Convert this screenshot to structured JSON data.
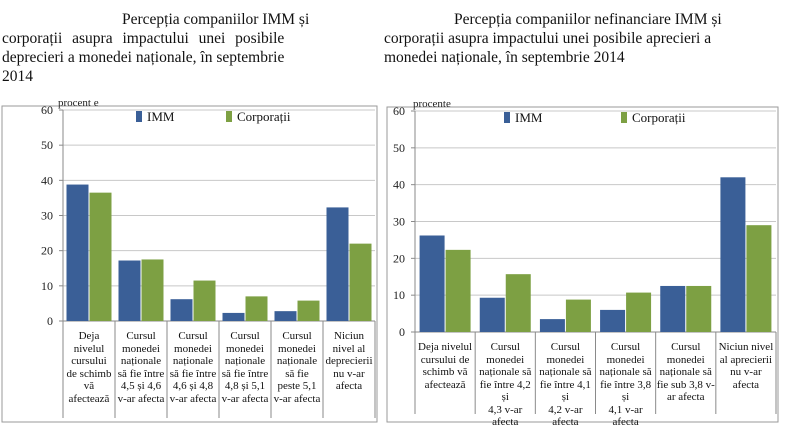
{
  "colors": {
    "imm": "#3A5F97",
    "corporatii": "#7DA043",
    "underline": "#E0141C",
    "grid": "#C8C8C8",
    "axis": "#8A8A8A"
  },
  "chart_data": [
    {
      "type": "bar",
      "title_lines": [
        "Percepția companiilor IMM și",
        "corporații asupra impactului unei posibile",
        "deprecieri a monedei naționale, în septembrie",
        "2014"
      ],
      "ylabel": "procent e",
      "ylim": [
        0,
        60
      ],
      "yticks": [
        "0",
        "10",
        "20",
        "30",
        "40",
        "50",
        "60"
      ],
      "legend": [
        "IMM",
        "Corporații"
      ],
      "categories": [
        [
          "Deja",
          "nivelul",
          "cursului",
          "de schimb",
          "vă",
          "afectează"
        ],
        [
          "Cursul",
          "monedei",
          "naționale",
          "să fie între",
          "4,5 și 4,6",
          "v-ar afecta"
        ],
        [
          "Cursul",
          "monedei",
          "naționale",
          "să fie între",
          "4,6 și 4,8",
          "v-ar afecta"
        ],
        [
          "Cursul",
          "monedei",
          "naționale",
          "să fie între",
          "4,8 și 5,1",
          "v-ar afecta"
        ],
        [
          "Cursul",
          "monedei",
          "naționale",
          "să fie",
          "peste 5,1",
          "v-ar afecta"
        ],
        [
          "Niciun",
          "nivel al",
          "deprecierii",
          "nu v-ar",
          "afecta"
        ]
      ],
      "series": [
        {
          "name": "IMM",
          "values": [
            38.8,
            17.2,
            6.2,
            2.3,
            2.8,
            32.3
          ]
        },
        {
          "name": "Corporații",
          "values": [
            36.5,
            17.5,
            11.5,
            7.0,
            5.8,
            22.0
          ]
        }
      ]
    },
    {
      "type": "bar",
      "title_lines": [
        "Percepția companiilor nefinanciare IMM și",
        "corporații asupra impactului unei posibile aprecieri a",
        "monedei naționale, în septembrie 2014"
      ],
      "ylabel": "procente",
      "ylim": [
        0,
        60
      ],
      "yticks": [
        "0",
        "10",
        "20",
        "30",
        "40",
        "50",
        "60"
      ],
      "legend": [
        "IMM",
        "Corporații"
      ],
      "categories": [
        [
          "Deja nivelul",
          "cursului de",
          "schimb vă",
          "afectează"
        ],
        [
          "Cursul",
          "monedei",
          "naționale să",
          "fie între 4,2 și",
          "4,3 v-ar afecta"
        ],
        [
          "Cursul",
          "monedei",
          "naționale să",
          "fie între 4,1 și",
          "4,2 v-ar afecta"
        ],
        [
          "Cursul",
          "monedei",
          "naționale să",
          "fie între 3,8 și",
          "4,1 v-ar afecta"
        ],
        [
          "Cursul",
          "monedei",
          "naționale să",
          "fie sub 3,8 v-",
          "ar afecta"
        ],
        [
          "Niciun nivel",
          "al aprecierii",
          "nu v-ar afecta"
        ]
      ],
      "series": [
        {
          "name": "IMM",
          "values": [
            26.2,
            9.3,
            3.5,
            6.0,
            12.5,
            42.0
          ]
        },
        {
          "name": "Corporații",
          "values": [
            22.3,
            15.7,
            8.8,
            10.7,
            12.5,
            29.0
          ]
        }
      ]
    }
  ]
}
